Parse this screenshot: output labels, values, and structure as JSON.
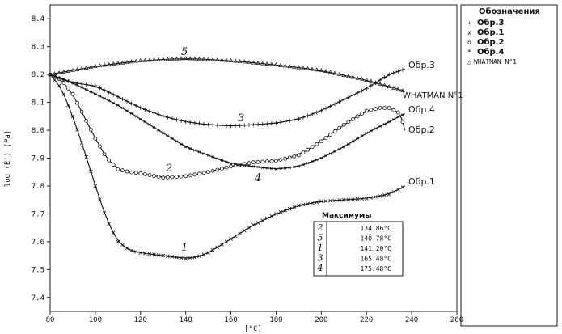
{
  "chart_data": {
    "type": "line",
    "xlabel": "[°C]",
    "ylabel": "log (E') (Pa)",
    "xlim": [
      80,
      260
    ],
    "ylim": [
      7.35,
      8.45
    ],
    "x_ticks": [
      80,
      100,
      120,
      140,
      160,
      180,
      200,
      220,
      240,
      260
    ],
    "y_ticks": [
      7.4,
      7.5,
      7.6,
      7.7,
      7.8,
      7.9,
      8.0,
      8.1,
      8.2,
      8.3,
      8.4
    ],
    "series": [
      {
        "name": "Обр.1",
        "curve_label": "1",
        "marker": "x",
        "x": [
          80,
          85,
          90,
          95,
          100,
          105,
          110,
          115,
          120,
          130,
          140,
          145,
          150,
          160,
          170,
          180,
          190,
          200,
          210,
          220,
          230,
          237
        ],
        "y": [
          8.2,
          8.15,
          8.05,
          7.93,
          7.8,
          7.68,
          7.6,
          7.57,
          7.56,
          7.55,
          7.54,
          7.545,
          7.56,
          7.61,
          7.66,
          7.7,
          7.73,
          7.745,
          7.75,
          7.755,
          7.77,
          7.8
        ]
      },
      {
        "name": "Обр.2",
        "curve_label": "2",
        "marker": "o",
        "x": [
          80,
          85,
          90,
          95,
          100,
          105,
          110,
          115,
          120,
          130,
          140,
          150,
          160,
          170,
          180,
          190,
          200,
          210,
          220,
          226,
          230,
          235,
          237
        ],
        "y": [
          8.2,
          8.18,
          8.13,
          8.05,
          7.97,
          7.9,
          7.86,
          7.85,
          7.845,
          7.83,
          7.835,
          7.85,
          7.87,
          7.885,
          7.89,
          7.91,
          7.96,
          8.02,
          8.07,
          8.08,
          8.08,
          8.06,
          8.0
        ]
      },
      {
        "name": "Обр.3",
        "curve_label": "3",
        "marker": "+",
        "x": [
          80,
          90,
          100,
          110,
          120,
          130,
          140,
          150,
          160,
          170,
          180,
          190,
          200,
          210,
          220,
          230,
          237
        ],
        "y": [
          8.2,
          8.17,
          8.16,
          8.12,
          8.08,
          8.05,
          8.03,
          8.02,
          8.015,
          8.02,
          8.025,
          8.04,
          8.07,
          8.11,
          8.15,
          8.2,
          8.22
        ]
      },
      {
        "name": "Обр.4",
        "curve_label": "4",
        "marker": "*",
        "x": [
          80,
          90,
          100,
          110,
          120,
          130,
          140,
          150,
          160,
          170,
          180,
          190,
          200,
          210,
          220,
          230,
          237
        ],
        "y": [
          8.2,
          8.17,
          8.13,
          8.09,
          8.04,
          7.99,
          7.94,
          7.91,
          7.88,
          7.87,
          7.86,
          7.87,
          7.9,
          7.94,
          7.99,
          8.03,
          8.06
        ]
      },
      {
        "name": "WHATMAN N°1",
        "curve_label": "5",
        "marker": "△",
        "x": [
          80,
          100,
          120,
          140,
          160,
          180,
          200,
          220,
          237
        ],
        "y": [
          8.2,
          8.23,
          8.25,
          8.258,
          8.25,
          8.235,
          8.215,
          8.18,
          8.14
        ]
      }
    ],
    "legend": {
      "title": "Обозначения",
      "entries": [
        {
          "marker": "+",
          "label": "Обр.3"
        },
        {
          "marker": "x",
          "label": "Обр.1"
        },
        {
          "marker": "o",
          "label": "Обр.2"
        },
        {
          "marker": "*",
          "label": "Обр.4"
        },
        {
          "marker": "△",
          "label": "WHATMAN N°1"
        }
      ],
      "placement": "right, outside plot"
    },
    "end_labels": {
      "s3": "Обр.3",
      "s4": "Обр.4",
      "s2": "Обр.2",
      "s1": "Обр.1",
      "s5": "WHATMAN N°1"
    },
    "maxima_table": {
      "title": "Максимумы",
      "rows": [
        {
          "curve": "2",
          "temp": "134.86°C"
        },
        {
          "curve": "5",
          "temp": "140.78°C"
        },
        {
          "curve": "1",
          "temp": "141.20°C"
        },
        {
          "curve": "3",
          "temp": "165.48°C"
        },
        {
          "curve": "4",
          "temp": "175.48°C"
        }
      ]
    },
    "grid": false
  }
}
